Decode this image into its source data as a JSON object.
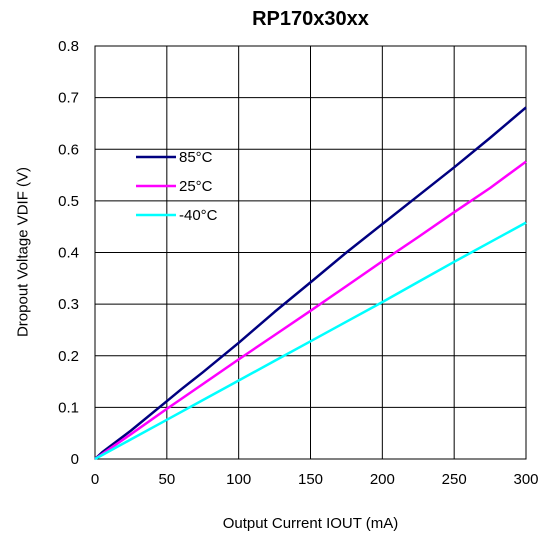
{
  "chart_data": {
    "type": "line",
    "title": "RP170x30xx",
    "xlabel": "Output Current IOUT (mA)",
    "ylabel": "Dropout Voltage VDIF (V)",
    "xlim": [
      0,
      300
    ],
    "ylim": [
      0,
      0.8
    ],
    "xticks": [
      "0",
      "50",
      "100",
      "150",
      "200",
      "250",
      "300"
    ],
    "yticks": [
      "0",
      "0.1",
      "0.2",
      "0.3",
      "0.4",
      "0.5",
      "0.6",
      "0.7",
      "0.8"
    ],
    "grid": true,
    "legend_position": "left-middle",
    "series": [
      {
        "name": "85°C",
        "color": "#000080",
        "points": [
          [
            0,
            0
          ],
          [
            5,
            0.013
          ],
          [
            25,
            0.055
          ],
          [
            50,
            0.112
          ],
          [
            60,
            0.135
          ],
          [
            75,
            0.168
          ],
          [
            100,
            0.225
          ],
          [
            125,
            0.285
          ],
          [
            150,
            0.342
          ],
          [
            175,
            0.4
          ],
          [
            200,
            0.455
          ],
          [
            225,
            0.51
          ],
          [
            250,
            0.565
          ],
          [
            275,
            0.622
          ],
          [
            300,
            0.681
          ]
        ]
      },
      {
        "name": "25°C",
        "color": "#ff00ff",
        "points": [
          [
            0,
            0
          ],
          [
            25,
            0.048
          ],
          [
            50,
            0.097
          ],
          [
            75,
            0.145
          ],
          [
            100,
            0.193
          ],
          [
            125,
            0.24
          ],
          [
            150,
            0.287
          ],
          [
            175,
            0.335
          ],
          [
            200,
            0.383
          ],
          [
            225,
            0.43
          ],
          [
            250,
            0.478
          ],
          [
            275,
            0.525
          ],
          [
            300,
            0.576
          ]
        ]
      },
      {
        "name": "-40°C",
        "color": "#00ffff",
        "points": [
          [
            0,
            0
          ],
          [
            25,
            0.038
          ],
          [
            50,
            0.076
          ],
          [
            75,
            0.114
          ],
          [
            100,
            0.152
          ],
          [
            125,
            0.19
          ],
          [
            150,
            0.228
          ],
          [
            175,
            0.266
          ],
          [
            200,
            0.304
          ],
          [
            225,
            0.343
          ],
          [
            250,
            0.382
          ],
          [
            275,
            0.42
          ],
          [
            300,
            0.458
          ]
        ]
      }
    ]
  }
}
